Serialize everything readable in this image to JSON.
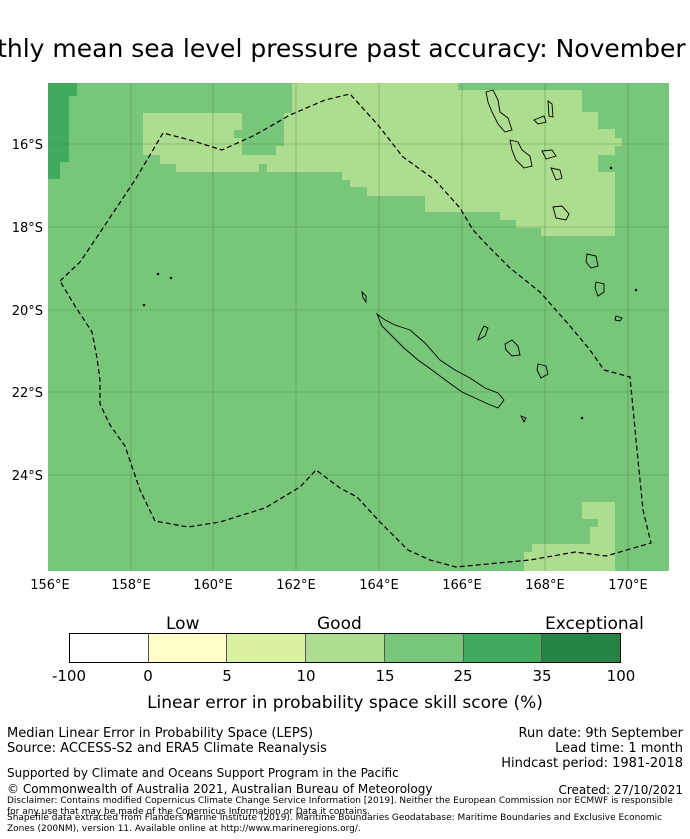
{
  "title": "Monthly mean sea level pressure past accuracy: November",
  "map": {
    "lat_labels": [
      "16°S",
      "18°S",
      "20°S",
      "22°S",
      "24°S"
    ],
    "lon_labels": [
      "156°E",
      "158°E",
      "160°E",
      "162°E",
      "164°E",
      "166°E",
      "168°E",
      "170°E"
    ],
    "colors": {
      "level_20_25": "#78c679",
      "level_15_20": "#addd8e",
      "level_25_30": "#41ab5d",
      "boundary": "#000000"
    }
  },
  "colorbar": {
    "categories": [
      "Low",
      "Good",
      "Exceptional"
    ],
    "ticks": [
      "-100",
      "0",
      "5",
      "10",
      "15",
      "25",
      "35",
      "100"
    ],
    "colors": [
      "#ffffff",
      "#ffffcc",
      "#d9f0a3",
      "#addd8e",
      "#78c679",
      "#41ab5d",
      "#238443"
    ],
    "label": "Linear error in probability space skill score (%)"
  },
  "footer": {
    "product": "Median Linear Error in Probability Space (LEPS)",
    "source": "Source: ACCESS-S2 and ERA5 Climate Reanalysis",
    "run_date": "Run date: 9th September",
    "lead_time": "Lead time: 1 month",
    "hindcast": "Hindcast period: 1981-2018",
    "supported": "Supported by Climate and Oceans Support Program in the Pacific",
    "copyright": "© Commonwealth of Australia 2021, Australian Bureau of Meteorology",
    "created": "Created: 27/10/2021",
    "disclaimer": "Disclaimer: Contains modified Copernicus Climate Change Service Information [2019]. Neither the European Commission nor ECMWF is responsible for any use that may be made of the Copernicus Information or Data it contains.",
    "shapefile": "Shapefile data extracted from Flanders Marine Institute (2019). Maritime Boundaries Geodatabase: Maritime Boundaries and Exclusive Economic Zones (200NM), version 11. Available online at http://www.marineregions.org/."
  }
}
